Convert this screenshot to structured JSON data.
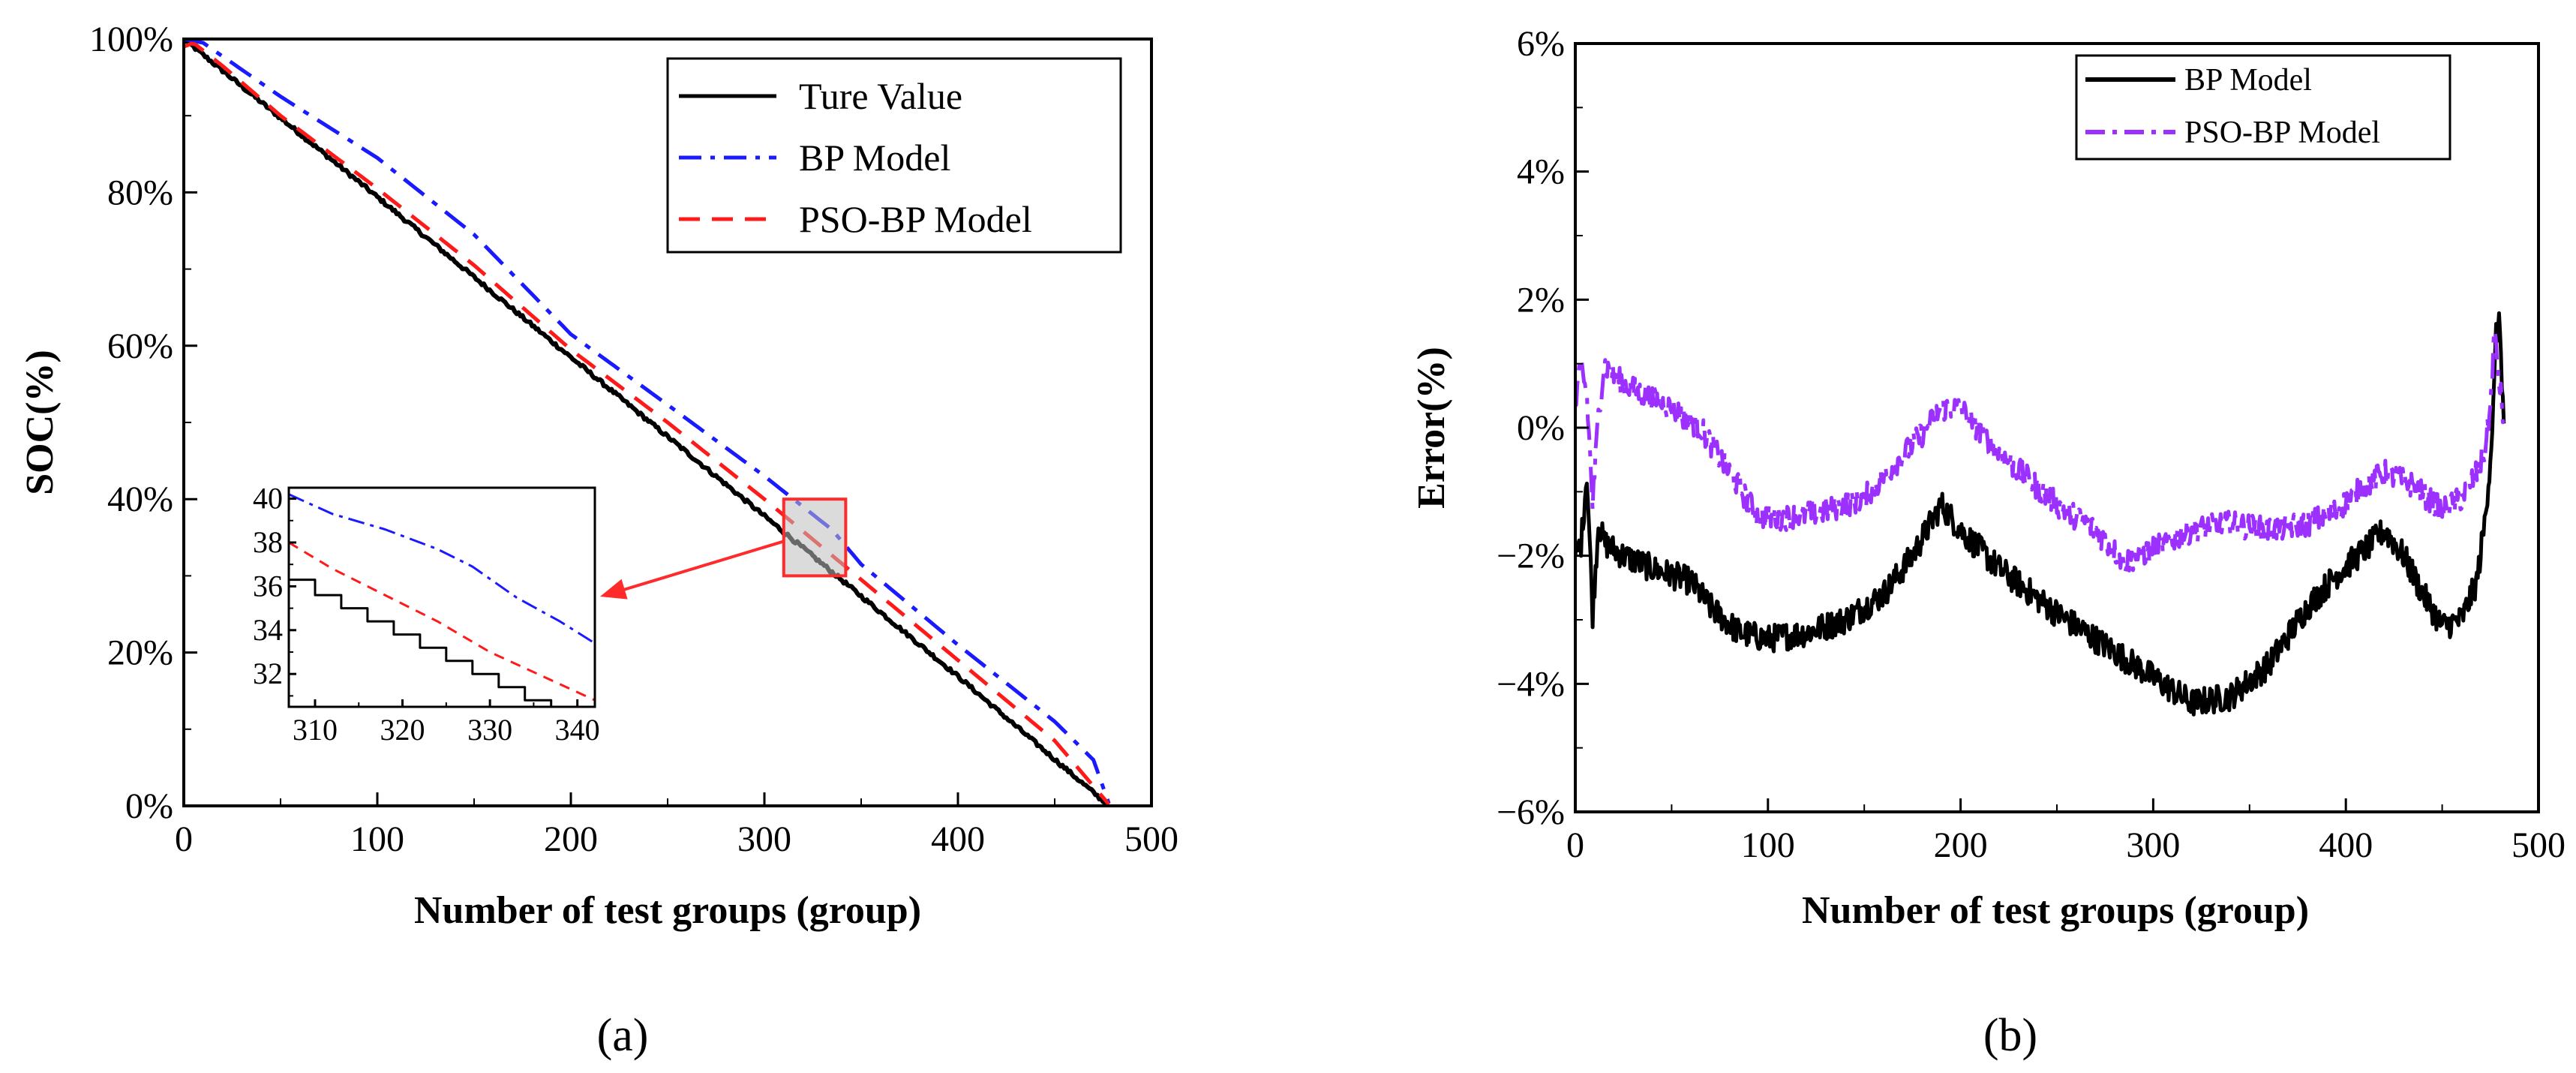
{
  "chart_data": [
    {
      "panel": "a",
      "type": "line",
      "caption": "(a)",
      "xlabel": "Number of test groups (group)",
      "ylabel": "SOC(%)",
      "xlim": [
        0,
        500
      ],
      "ylim": [
        0,
        100
      ],
      "xticks": [
        "0",
        "100",
        "200",
        "300",
        "400",
        "500"
      ],
      "yticks": [
        "0%",
        "20%",
        "40%",
        "60%",
        "80%",
        "100%"
      ],
      "legend_position": "top-right",
      "series": [
        {
          "name": "Ture Value",
          "color": "#000000",
          "style": "solid",
          "x": [
            0,
            100,
            200,
            300,
            400,
            478
          ],
          "y": [
            100,
            79.4,
            58.5,
            37.8,
            16.9,
            0
          ]
        },
        {
          "name": "BP Model",
          "color": "#1a1aff",
          "style": "dashdot",
          "x": [
            0,
            10,
            50,
            100,
            150,
            200,
            250,
            300,
            335,
            350,
            400,
            450,
            470,
            478
          ],
          "y": [
            100,
            99.5,
            92.5,
            84.5,
            74.5,
            61.5,
            52.3,
            43.0,
            36.0,
            31.5,
            21.0,
            11.0,
            6.0,
            0.3
          ]
        },
        {
          "name": "PSO-BP Model",
          "color": "#ff1a1a",
          "style": "dashed",
          "x": [
            0,
            5,
            20,
            50,
            100,
            150,
            200,
            250,
            300,
            350,
            400,
            450,
            478
          ],
          "y": [
            99,
            99.5,
            96.5,
            90.0,
            80.5,
            70.5,
            59.5,
            50.0,
            40.0,
            29.5,
            19.0,
            8.5,
            0.2
          ]
        }
      ],
      "highlight_box": {
        "xrange": [
          310,
          342
        ],
        "yrange": [
          30,
          40
        ]
      },
      "inset": {
        "xlim": [
          307,
          342
        ],
        "ylim": [
          30.5,
          40.5
        ],
        "xticks": [
          "310",
          "320",
          "330",
          "340"
        ],
        "yticks": [
          "32",
          "34",
          "36",
          "38",
          "40"
        ],
        "series": [
          {
            "name": "Ture Value",
            "color": "#000000",
            "x": [
              307,
              310,
              310,
              313,
              313,
              316,
              316,
              319,
              319,
              322,
              322,
              325,
              325,
              328,
              328,
              331,
              331,
              334,
              334,
              337,
              337,
              342
            ],
            "y": [
              36.3,
              36.3,
              35.6,
              35.6,
              35.0,
              35.0,
              34.4,
              34.4,
              33.8,
              33.8,
              33.2,
              33.2,
              32.6,
              32.6,
              32.0,
              32.0,
              31.4,
              31.4,
              30.8,
              30.8,
              30.5,
              30.5
            ]
          },
          {
            "name": "BP Model",
            "color": "#1a1aff",
            "x": [
              307,
              312,
              318,
              324,
              328,
              333,
              338,
              342
            ],
            "y": [
              40.2,
              39.3,
              38.6,
              37.7,
              36.9,
              35.5,
              34.4,
              33.4
            ]
          },
          {
            "name": "PSO-BP Model",
            "color": "#ff1a1a",
            "x": [
              307,
              312,
              318,
              324,
              330,
              336,
              342
            ],
            "y": [
              38.0,
              36.8,
              35.6,
              34.4,
              33.0,
              31.9,
              30.8
            ]
          }
        ]
      }
    },
    {
      "panel": "b",
      "type": "line",
      "caption": "(b)",
      "xlabel": "Number of test groups (group)",
      "ylabel": "Error(%)",
      "xlim": [
        0,
        500
      ],
      "ylim": [
        -6,
        6
      ],
      "xticks": [
        "0",
        "100",
        "200",
        "300",
        "400",
        "500"
      ],
      "yticks": [
        "−6%",
        "−4%",
        "−2%",
        "0%",
        "2%",
        "4%",
        "6%"
      ],
      "legend_position": "top-right",
      "series": [
        {
          "name": "BP Model",
          "color": "#000000",
          "style": "solid",
          "x": [
            0,
            3,
            6,
            9,
            12,
            15,
            25,
            40,
            60,
            70,
            85,
            100,
            120,
            140,
            160,
            175,
            190,
            200,
            220,
            250,
            280,
            300,
            320,
            340,
            360,
            380,
            395,
            410,
            420,
            430,
            440,
            450,
            460,
            468,
            472,
            475,
            477,
            478,
            480,
            482
          ],
          "y": [
            -2.0,
            -1.8,
            -0.7,
            -2.9,
            -1.5,
            -1.8,
            -2.0,
            -2.2,
            -2.4,
            -2.8,
            -3.2,
            -3.3,
            -3.2,
            -3.0,
            -2.6,
            -2.0,
            -1.2,
            -1.6,
            -2.2,
            -2.9,
            -3.5,
            -3.9,
            -4.3,
            -4.2,
            -3.7,
            -2.8,
            -2.3,
            -1.9,
            -1.6,
            -2.0,
            -2.6,
            -3.1,
            -3.0,
            -2.4,
            -1.5,
            -0.5,
            0.6,
            1.5,
            1.6,
            0.0
          ]
        },
        {
          "name": "PSO-BP Model",
          "color": "#9b30ff",
          "style": "dashdot",
          "x": [
            0,
            3,
            6,
            9,
            12,
            15,
            20,
            30,
            50,
            65,
            80,
            95,
            110,
            130,
            150,
            165,
            180,
            190,
            200,
            220,
            250,
            270,
            285,
            300,
            320,
            340,
            360,
            380,
            395,
            410,
            420,
            435,
            450,
            460,
            468,
            472,
            475,
            477,
            479,
            482
          ],
          "y": [
            0.3,
            1.0,
            0.5,
            -1.2,
            0.2,
            1.0,
            0.8,
            0.6,
            0.3,
            0.0,
            -0.7,
            -1.4,
            -1.4,
            -1.3,
            -1.1,
            -0.6,
            -0.1,
            0.3,
            0.3,
            -0.4,
            -1.2,
            -1.6,
            -2.1,
            -1.9,
            -1.6,
            -1.5,
            -1.6,
            -1.5,
            -1.3,
            -0.9,
            -0.7,
            -0.9,
            -1.3,
            -1.1,
            -0.7,
            -0.4,
            0.3,
            1.5,
            0.9,
            0.1
          ]
        }
      ]
    }
  ]
}
